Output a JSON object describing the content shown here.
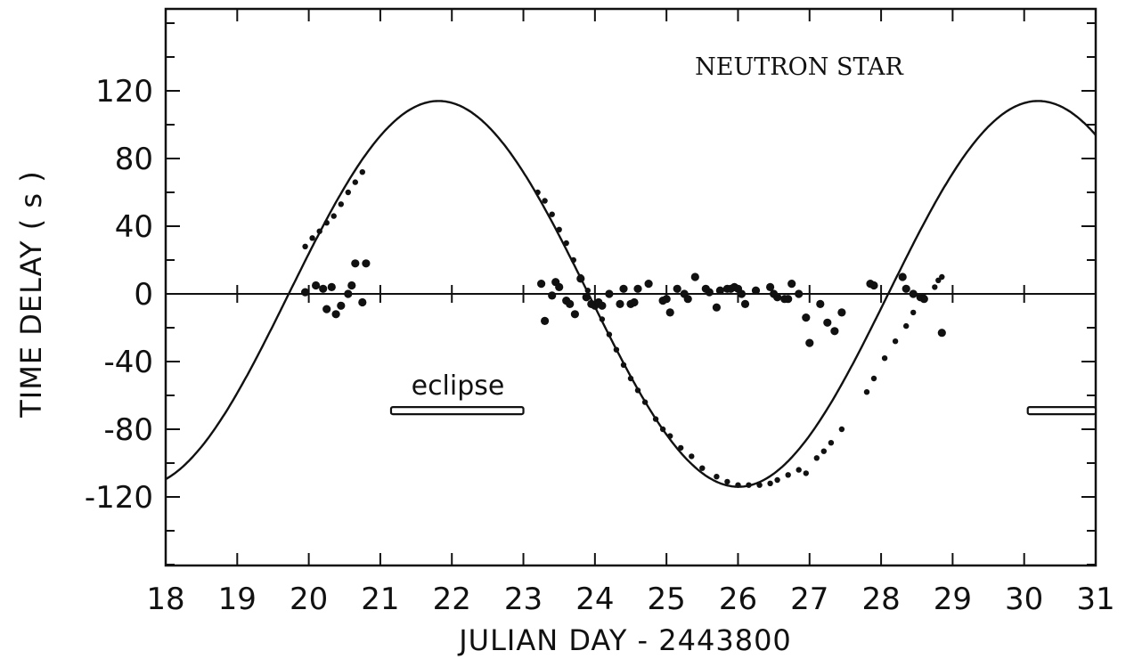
{
  "chart_data": {
    "type": "scatter",
    "title": "",
    "xlabel": "JULIAN DAY - 2443800",
    "ylabel": "TIME DELAY ( s )",
    "xlim": [
      18,
      31
    ],
    "ylim": [
      -160,
      170
    ],
    "x_ticks": [
      18,
      19,
      20,
      21,
      22,
      23,
      24,
      25,
      26,
      27,
      28,
      29,
      30,
      31
    ],
    "x_tick_labels": [
      "18",
      "19",
      "20",
      "21",
      "22",
      "23",
      "24",
      "25",
      "26",
      "27",
      "28",
      "29",
      "30",
      "31"
    ],
    "y_ticks": [
      120,
      80,
      40,
      0,
      -40,
      -80,
      -120
    ],
    "y_tick_labels": [
      "120",
      "80",
      "40",
      "0",
      "-40",
      "-80",
      "-120"
    ],
    "y_minor_step": 20,
    "grid": false,
    "zero_line": true,
    "annotations": {
      "label": "NEUTRON STAR",
      "eclipse_label": "eclipse"
    },
    "eclipse_intervals": [
      {
        "x_start": 21.15,
        "x_end": 23.0,
        "y": -69
      },
      {
        "x_start": 30.05,
        "x_end": 31.0,
        "y": -69
      }
    ],
    "curve": {
      "name": "orbit fit",
      "kind": "sinusoid",
      "amplitude": 114,
      "center": 0,
      "period_days": 8.38,
      "zero_crossing_x": 19.72,
      "points": [
        [
          18.0,
          -100
        ],
        [
          18.5,
          -81
        ],
        [
          19.0,
          -54
        ],
        [
          19.5,
          -23
        ],
        [
          19.72,
          0
        ],
        [
          20.0,
          24
        ],
        [
          20.5,
          62
        ],
        [
          21.0,
          92
        ],
        [
          21.5,
          109
        ],
        [
          21.9,
          114
        ],
        [
          22.5,
          107
        ],
        [
          23.0,
          88
        ],
        [
          23.5,
          57
        ],
        [
          23.91,
          0
        ],
        [
          24.5,
          -54
        ],
        [
          25.0,
          -88
        ],
        [
          25.5,
          -107
        ],
        [
          26.1,
          -114
        ],
        [
          26.5,
          -111
        ],
        [
          27.0,
          -97
        ],
        [
          27.5,
          -72
        ],
        [
          28.0,
          -40
        ],
        [
          28.5,
          -6
        ],
        [
          28.6,
          0
        ],
        [
          29.0,
          39
        ],
        [
          29.5,
          72
        ],
        [
          30.0,
          96
        ],
        [
          30.5,
          110
        ],
        [
          30.9,
          114
        ],
        [
          31.0,
          114
        ]
      ]
    },
    "series": [
      {
        "name": "",
        "kind": "delay residuals near zero",
        "points": [
          [
            19.95,
            1
          ],
          [
            20.1,
            5
          ],
          [
            20.2,
            3
          ],
          [
            20.25,
            -9
          ],
          [
            20.32,
            4
          ],
          [
            20.38,
            -12
          ],
          [
            20.45,
            -7
          ],
          [
            20.55,
            0
          ],
          [
            20.6,
            5
          ],
          [
            20.65,
            18
          ],
          [
            20.75,
            -5
          ],
          [
            20.8,
            18
          ],
          [
            23.25,
            6
          ],
          [
            23.3,
            -16
          ],
          [
            23.4,
            -1
          ],
          [
            23.45,
            7
          ],
          [
            23.5,
            4
          ],
          [
            23.6,
            -4
          ],
          [
            23.65,
            -6
          ],
          [
            23.72,
            -12
          ],
          [
            23.8,
            9
          ],
          [
            23.88,
            -2
          ],
          [
            23.95,
            -6
          ],
          [
            24.0,
            -7
          ],
          [
            24.05,
            -5
          ],
          [
            24.1,
            -7
          ],
          [
            24.2,
            0
          ],
          [
            24.35,
            -6
          ],
          [
            24.4,
            3
          ],
          [
            24.5,
            -6
          ],
          [
            24.55,
            -5
          ],
          [
            24.6,
            3
          ],
          [
            24.75,
            6
          ],
          [
            24.95,
            -4
          ],
          [
            25.0,
            -3
          ],
          [
            25.05,
            -11
          ],
          [
            25.15,
            3
          ],
          [
            25.25,
            0
          ],
          [
            25.3,
            -3
          ],
          [
            25.4,
            10
          ],
          [
            25.55,
            3
          ],
          [
            25.6,
            1
          ],
          [
            25.7,
            -8
          ],
          [
            25.75,
            2
          ],
          [
            25.85,
            3
          ],
          [
            25.9,
            3
          ],
          [
            25.95,
            4
          ],
          [
            26.0,
            3
          ],
          [
            26.05,
            0
          ],
          [
            26.1,
            -6
          ],
          [
            26.25,
            2
          ],
          [
            26.45,
            4
          ],
          [
            26.5,
            0
          ],
          [
            26.55,
            -2
          ],
          [
            26.65,
            -3
          ],
          [
            26.7,
            -3
          ],
          [
            26.75,
            6
          ],
          [
            26.85,
            0
          ],
          [
            26.95,
            -14
          ],
          [
            27.0,
            -29
          ],
          [
            27.15,
            -6
          ],
          [
            27.25,
            -17
          ],
          [
            27.35,
            -22
          ],
          [
            27.45,
            -11
          ],
          [
            27.85,
            6
          ],
          [
            27.9,
            5
          ],
          [
            28.3,
            10
          ],
          [
            28.35,
            3
          ],
          [
            28.45,
            0
          ],
          [
            28.55,
            -2
          ],
          [
            28.6,
            -3
          ],
          [
            28.85,
            -23
          ]
        ]
      },
      {
        "name": "",
        "kind": "measurements along curve",
        "points": [
          [
            19.95,
            28
          ],
          [
            20.05,
            33
          ],
          [
            20.15,
            37
          ],
          [
            20.25,
            42
          ],
          [
            20.35,
            46
          ],
          [
            20.45,
            53
          ],
          [
            20.55,
            60
          ],
          [
            20.65,
            66
          ],
          [
            20.75,
            72
          ],
          [
            23.2,
            60
          ],
          [
            23.3,
            55
          ],
          [
            23.4,
            47
          ],
          [
            23.5,
            38
          ],
          [
            23.6,
            30
          ],
          [
            23.7,
            20
          ],
          [
            23.8,
            10
          ],
          [
            23.9,
            2
          ],
          [
            24.1,
            -15
          ],
          [
            24.2,
            -24
          ],
          [
            24.3,
            -33
          ],
          [
            24.4,
            -42
          ],
          [
            24.5,
            -50
          ],
          [
            24.6,
            -57
          ],
          [
            24.7,
            -64
          ],
          [
            24.85,
            -74
          ],
          [
            24.95,
            -80
          ],
          [
            25.05,
            -84
          ],
          [
            25.2,
            -91
          ],
          [
            25.35,
            -96
          ],
          [
            25.5,
            -103
          ],
          [
            25.7,
            -108
          ],
          [
            25.85,
            -111
          ],
          [
            26.0,
            -113
          ],
          [
            26.15,
            -113
          ],
          [
            26.3,
            -113
          ],
          [
            26.45,
            -112
          ],
          [
            26.55,
            -110
          ],
          [
            26.7,
            -107
          ],
          [
            26.85,
            -104
          ],
          [
            26.95,
            -106
          ],
          [
            27.1,
            -97
          ],
          [
            27.2,
            -93
          ],
          [
            27.3,
            -88
          ],
          [
            27.45,
            -80
          ],
          [
            27.8,
            -58
          ],
          [
            27.9,
            -50
          ],
          [
            28.05,
            -38
          ],
          [
            28.2,
            -28
          ],
          [
            28.35,
            -19
          ],
          [
            28.45,
            -11
          ],
          [
            28.6,
            -2
          ],
          [
            28.75,
            4
          ],
          [
            28.8,
            8
          ],
          [
            28.85,
            10
          ]
        ]
      }
    ]
  }
}
